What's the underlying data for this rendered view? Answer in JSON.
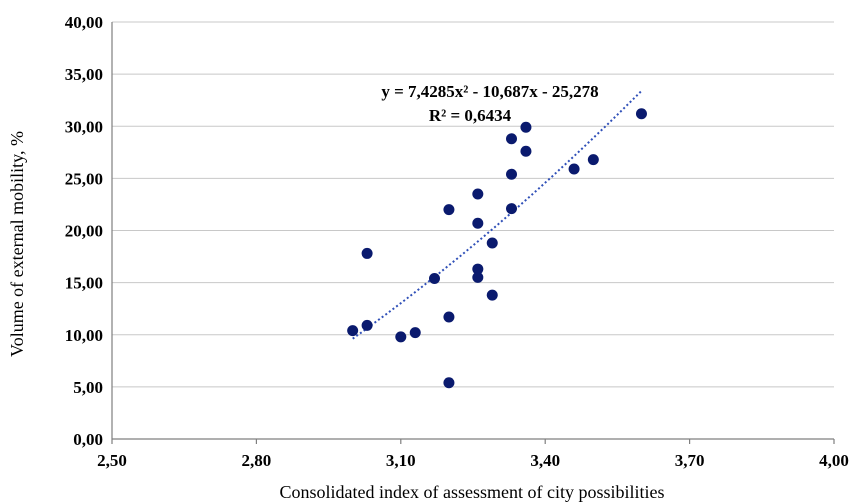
{
  "chart_data": {
    "type": "scatter",
    "xlabel": "Consolidated index of assessment of city possibilities",
    "ylabel": "Volume of external mobility, %",
    "xlim": [
      2.5,
      4.0
    ],
    "ylim": [
      0,
      40
    ],
    "x_ticks": [
      "2,50",
      "2,80",
      "3,10",
      "3,40",
      "3,70",
      "4,00"
    ],
    "y_ticks": [
      "0,00",
      "5,00",
      "10,00",
      "15,00",
      "20,00",
      "25,00",
      "30,00",
      "35,00",
      "40,00"
    ],
    "grid": "horizontal",
    "colors": {
      "points": "#0a1a6e",
      "trendline": "#3050b8",
      "grid": "#c8c8c8",
      "axis": "#7f7f7f"
    },
    "points": [
      {
        "x": 3.0,
        "y": 10.4
      },
      {
        "x": 3.03,
        "y": 17.8
      },
      {
        "x": 3.03,
        "y": 10.9
      },
      {
        "x": 3.1,
        "y": 9.8
      },
      {
        "x": 3.13,
        "y": 10.2
      },
      {
        "x": 3.17,
        "y": 15.4
      },
      {
        "x": 3.2,
        "y": 22.0
      },
      {
        "x": 3.2,
        "y": 11.7
      },
      {
        "x": 3.2,
        "y": 5.4
      },
      {
        "x": 3.26,
        "y": 23.5
      },
      {
        "x": 3.26,
        "y": 20.7
      },
      {
        "x": 3.26,
        "y": 16.3
      },
      {
        "x": 3.26,
        "y": 15.5
      },
      {
        "x": 3.29,
        "y": 18.8
      },
      {
        "x": 3.29,
        "y": 13.8
      },
      {
        "x": 3.33,
        "y": 28.8
      },
      {
        "x": 3.33,
        "y": 25.4
      },
      {
        "x": 3.33,
        "y": 22.1
      },
      {
        "x": 3.36,
        "y": 29.9
      },
      {
        "x": 3.36,
        "y": 27.6
      },
      {
        "x": 3.46,
        "y": 25.9
      },
      {
        "x": 3.5,
        "y": 26.8
      },
      {
        "x": 3.6,
        "y": 31.2
      }
    ],
    "trendline": {
      "type": "polynomial",
      "x_range": [
        3.0,
        3.6
      ],
      "equation": "y = 7,4285x² - 10,687x - 25,278",
      "r_squared": "R² = 0,6434"
    }
  }
}
